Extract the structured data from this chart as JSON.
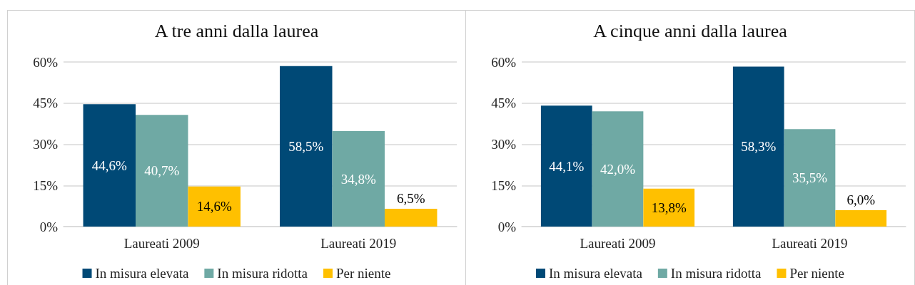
{
  "chart_data": [
    {
      "type": "bar",
      "title": "A tre anni dalla laurea",
      "categories": [
        "Laureati 2009",
        "Laureati 2019"
      ],
      "series": [
        {
          "name": "In misura elevata",
          "color": "#004976",
          "values": [
            44.6,
            58.5
          ],
          "value_labels": [
            "44,6%",
            "58,5%"
          ]
        },
        {
          "name": "In misura ridotta",
          "color": "#6fa9a4",
          "values": [
            40.7,
            34.8
          ],
          "value_labels": [
            "40,7%",
            "34,8%"
          ]
        },
        {
          "name": "Per niente",
          "color": "#ffc000",
          "values": [
            14.6,
            6.5
          ],
          "value_labels": [
            "14,6%",
            "6,5%"
          ]
        }
      ],
      "ylim": [
        0,
        60
      ],
      "yticks": [
        {
          "value": 0,
          "label": "0%"
        },
        {
          "value": 15,
          "label": "15%"
        },
        {
          "value": 30,
          "label": "30%"
        },
        {
          "value": 45,
          "label": "45%"
        },
        {
          "value": 60,
          "label": "60%"
        }
      ],
      "grid": "y",
      "legend": "bottom"
    },
    {
      "type": "bar",
      "title": "A cinque anni dalla laurea",
      "categories": [
        "Laureati 2009",
        "Laureati 2019"
      ],
      "series": [
        {
          "name": "In misura elevata",
          "color": "#004976",
          "values": [
            44.1,
            58.3
          ],
          "value_labels": [
            "44,1%",
            "58,3%"
          ]
        },
        {
          "name": "In misura ridotta",
          "color": "#6fa9a4",
          "values": [
            42.0,
            35.5
          ],
          "value_labels": [
            "42,0%",
            "35,5%"
          ]
        },
        {
          "name": "Per niente",
          "color": "#ffc000",
          "values": [
            13.8,
            6.0
          ],
          "value_labels": [
            "13,8%",
            "6,0%"
          ]
        }
      ],
      "ylim": [
        0,
        60
      ],
      "yticks": [
        {
          "value": 0,
          "label": "0%"
        },
        {
          "value": 15,
          "label": "15%"
        },
        {
          "value": 30,
          "label": "30%"
        },
        {
          "value": 45,
          "label": "45%"
        },
        {
          "value": 60,
          "label": "60%"
        }
      ],
      "grid": "y",
      "legend": "bottom"
    }
  ]
}
